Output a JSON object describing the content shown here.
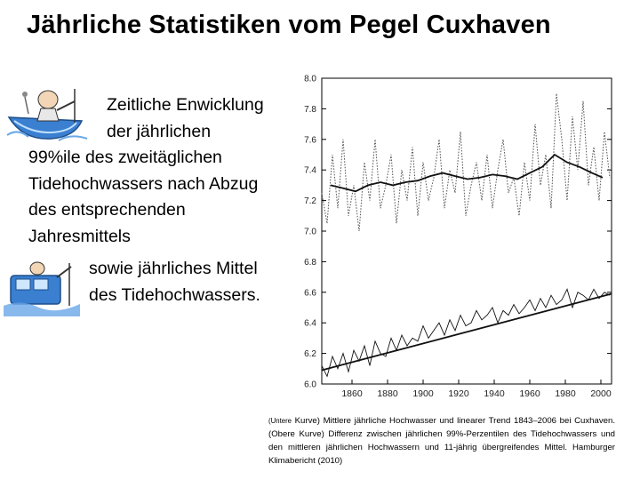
{
  "slide": {
    "title": "Jährliche Statistiken vom Pegel Cuxhaven",
    "text1": {
      "line1": "Zeitliche Enwicklung",
      "line2": "der jährlichen",
      "line3": "99%ile des zweitäglichen",
      "line4": "Tidehochwassers nach Abzug",
      "line5": "des entsprechenden",
      "line6": "Jahresmittels"
    },
    "text2": {
      "line1": "sowie jährliches Mittel",
      "line2": "des Tidehochwassers."
    },
    "caption": {
      "prefix": "(Untere",
      "body": " Kurve) Mittlere jährliche Hochwasser und linearer Trend 1843–2006 bei Cuxhaven. (Obere Kurve) Differenz zwischen jährlichen 99%-Perzentilen des Tidehochwassers und den mittleren jährlichen Hochwassern und 11-jährig übergreifendes Mittel. Hamburger Klimabericht (2010)"
    },
    "colors": {
      "line": "#111111",
      "dotted": "#555555",
      "axis": "#000000"
    }
  },
  "chart_data": {
    "type": "line",
    "title": "",
    "xlabel": "",
    "ylabel": "",
    "xlim": [
      1843,
      2006
    ],
    "ylim": [
      6.0,
      8.0
    ],
    "x_ticks": [
      "1860",
      "1880",
      "1900",
      "1920",
      "1940",
      "1960",
      "1980",
      "2000"
    ],
    "y_ticks": [
      "6.0",
      "6.2",
      "6.4",
      "6.6",
      "6.8",
      "7.0",
      "7.2",
      "7.4",
      "7.6",
      "7.8",
      "8.0"
    ],
    "series": [
      {
        "name": "Differenz 99%-Perzentil minus mittleres Hochwasser (jährlich)",
        "style": "dotted",
        "x": [
          1843,
          1846,
          1849,
          1852,
          1855,
          1858,
          1861,
          1864,
          1867,
          1870,
          1873,
          1876,
          1879,
          1882,
          1885,
          1888,
          1891,
          1894,
          1897,
          1900,
          1903,
          1906,
          1909,
          1912,
          1915,
          1918,
          1921,
          1924,
          1927,
          1930,
          1933,
          1936,
          1939,
          1942,
          1945,
          1948,
          1951,
          1954,
          1957,
          1960,
          1963,
          1966,
          1969,
          1972,
          1975,
          1978,
          1981,
          1984,
          1987,
          1990,
          1993,
          1996,
          1999,
          2002,
          2005
        ],
        "y": [
          7.25,
          7.05,
          7.5,
          7.15,
          7.6,
          7.1,
          7.3,
          7.0,
          7.45,
          7.2,
          7.6,
          7.15,
          7.3,
          7.5,
          7.05,
          7.4,
          7.2,
          7.55,
          7.1,
          7.45,
          7.2,
          7.35,
          7.6,
          7.15,
          7.4,
          7.25,
          7.65,
          7.1,
          7.3,
          7.45,
          7.2,
          7.5,
          7.15,
          7.4,
          7.6,
          7.25,
          7.35,
          7.1,
          7.45,
          7.2,
          7.7,
          7.3,
          7.5,
          7.15,
          7.9,
          7.6,
          7.2,
          7.75,
          7.4,
          7.85,
          7.3,
          7.55,
          7.2,
          7.65,
          7.35
        ]
      },
      {
        "name": "11-jährig übergreifendes Mittel",
        "style": "solid",
        "x": [
          1848,
          1855,
          1862,
          1869,
          1876,
          1883,
          1890,
          1897,
          1904,
          1911,
          1918,
          1925,
          1932,
          1939,
          1946,
          1953,
          1960,
          1967,
          1974,
          1981,
          1988,
          1995,
          2001
        ],
        "y": [
          7.3,
          7.28,
          7.26,
          7.3,
          7.32,
          7.3,
          7.32,
          7.33,
          7.36,
          7.38,
          7.36,
          7.34,
          7.35,
          7.37,
          7.36,
          7.34,
          7.38,
          7.42,
          7.5,
          7.45,
          7.42,
          7.38,
          7.35
        ]
      },
      {
        "name": "Mittlere jährliche Hochwasser",
        "style": "solid-thin",
        "x": [
          1843,
          1846,
          1849,
          1852,
          1855,
          1858,
          1861,
          1864,
          1867,
          1870,
          1873,
          1876,
          1879,
          1882,
          1885,
          1888,
          1891,
          1894,
          1897,
          1900,
          1903,
          1906,
          1909,
          1912,
          1915,
          1918,
          1921,
          1924,
          1927,
          1930,
          1933,
          1936,
          1939,
          1942,
          1945,
          1948,
          1951,
          1954,
          1957,
          1960,
          1963,
          1966,
          1969,
          1972,
          1975,
          1978,
          1981,
          1984,
          1987,
          1990,
          1993,
          1996,
          1999,
          2002,
          2005
        ],
        "y": [
          6.12,
          6.05,
          6.18,
          6.1,
          6.2,
          6.08,
          6.22,
          6.15,
          6.25,
          6.12,
          6.28,
          6.2,
          6.18,
          6.3,
          6.22,
          6.32,
          6.25,
          6.3,
          6.28,
          6.38,
          6.3,
          6.35,
          6.4,
          6.32,
          6.42,
          6.35,
          6.45,
          6.38,
          6.4,
          6.48,
          6.42,
          6.45,
          6.5,
          6.4,
          6.48,
          6.45,
          6.52,
          6.46,
          6.5,
          6.55,
          6.48,
          6.56,
          6.5,
          6.58,
          6.52,
          6.55,
          6.62,
          6.5,
          6.6,
          6.58,
          6.55,
          6.62,
          6.56,
          6.6,
          6.58
        ]
      },
      {
        "name": "Linearer Trend",
        "style": "solid",
        "x": [
          1843,
          2006
        ],
        "y": [
          6.09,
          6.59
        ]
      }
    ]
  }
}
